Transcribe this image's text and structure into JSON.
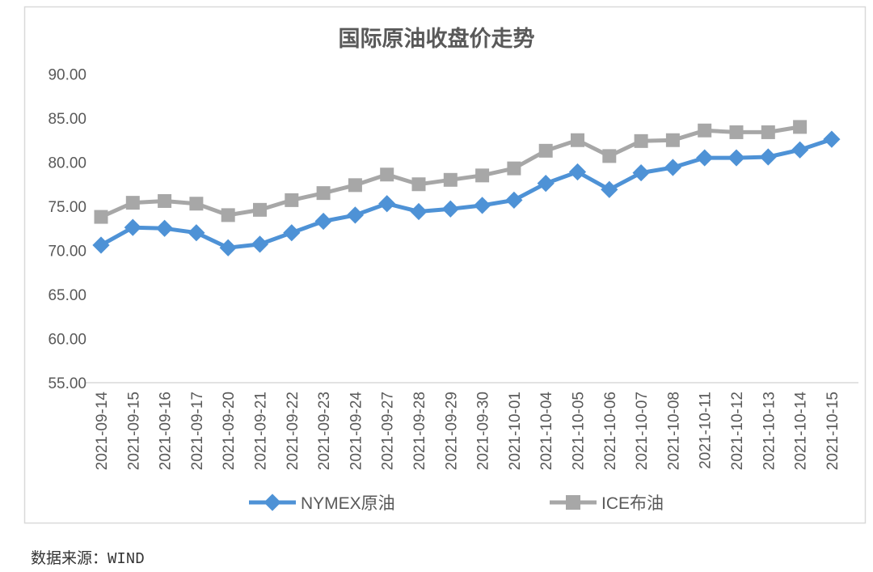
{
  "title": "国际原油收盘价走势",
  "source_note": "数据来源：WIND",
  "colors": {
    "nymex_blue": "#4E92D6",
    "ice_gray": "#A7A7A7",
    "axis_text": "#595959",
    "border": "#D9D9D9"
  },
  "legend": [
    {
      "label": "NYMEX原油",
      "marker": "diamond",
      "color": "#4E92D6"
    },
    {
      "label": "ICE布油",
      "marker": "square",
      "color": "#A7A7A7"
    }
  ],
  "chart_data": {
    "type": "line",
    "title": "国际原油收盘价走势",
    "xlabel": "",
    "ylabel": "",
    "ylim": [
      55,
      90
    ],
    "yticks": [
      90,
      85,
      80,
      75,
      70,
      65,
      60,
      55
    ],
    "ytick_labels": [
      "90.00",
      "85.00",
      "80.00",
      "75.00",
      "70.00",
      "65.00",
      "60.00",
      "55.00"
    ],
    "grid": false,
    "legend_position": "bottom",
    "categories": [
      "2021-09-14",
      "2021-09-15",
      "2021-09-16",
      "2021-09-17",
      "2021-09-20",
      "2021-09-21",
      "2021-09-22",
      "2021-09-23",
      "2021-09-24",
      "2021-09-27",
      "2021-09-28",
      "2021-09-29",
      "2021-09-30",
      "2021-10-01",
      "2021-10-04",
      "2021-10-05",
      "2021-10-06",
      "2021-10-07",
      "2021-10-08",
      "2021-10-11",
      "2021-10-12",
      "2021-10-13",
      "2021-10-14",
      "2021-10-15"
    ],
    "series": [
      {
        "name": "NYMEX原油",
        "marker": "diamond",
        "color": "#4E92D6",
        "values": [
          70.6,
          72.6,
          72.5,
          72.0,
          70.3,
          70.7,
          72.0,
          73.3,
          74.0,
          75.3,
          74.4,
          74.7,
          75.1,
          75.7,
          77.6,
          78.9,
          76.9,
          78.8,
          79.4,
          80.5,
          80.5,
          80.6,
          81.4,
          82.6
        ]
      },
      {
        "name": "ICE布油",
        "marker": "square",
        "color": "#A7A7A7",
        "values": [
          73.8,
          75.4,
          75.6,
          75.3,
          74.0,
          74.6,
          75.7,
          76.5,
          77.4,
          78.6,
          77.5,
          78.0,
          78.5,
          79.3,
          81.3,
          82.5,
          80.7,
          82.4,
          82.5,
          83.6,
          83.4,
          83.4,
          84.0,
          null
        ]
      }
    ]
  }
}
